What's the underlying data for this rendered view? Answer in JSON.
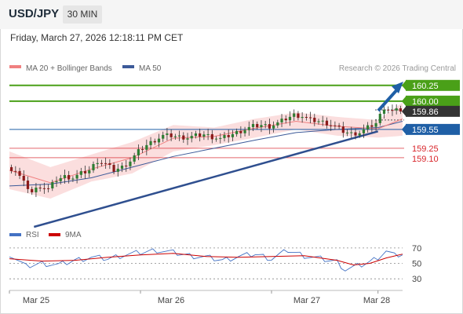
{
  "header": {
    "pair": "USD/JPY",
    "timeframe": "30 MIN"
  },
  "datetime": "Friday, March 27, 2026 12:18:11 PM CET",
  "copyright": "Research © 2026 Trading Central",
  "colors": {
    "resistance": "#4aa018",
    "support": "#d9262c",
    "pivot": "#1f5fa6",
    "trendline": "#2f4f8f",
    "ma20": "#f08080",
    "ma50": "#3c5a99",
    "bollinger_fill": "#fbdede",
    "current_price": "#333333",
    "rsi": "#4472c4",
    "rsi_ma": "#cc0000"
  },
  "chart_data": [
    {
      "type": "line",
      "legend": [
        {
          "name": "MA 20 + Bollinger Bands",
          "color": "#f08080"
        },
        {
          "name": "MA 50",
          "color": "#3c5a99"
        }
      ],
      "x_ticks": [
        "Mar 25",
        "Mar 26",
        "Mar 27",
        "Mar 28"
      ],
      "ylim": [
        158.05,
        160.36
      ],
      "levels": [
        {
          "value": 160.25,
          "label": "160.25",
          "kind": "resistance"
        },
        {
          "value": 160.0,
          "label": "160.00",
          "kind": "resistance"
        },
        {
          "value": 159.86,
          "label": "159.86",
          "kind": "current"
        },
        {
          "value": 159.55,
          "label": "159.55",
          "kind": "pivot"
        },
        {
          "value": 159.25,
          "label": "159.25",
          "kind": "support"
        },
        {
          "value": 159.1,
          "label": "159.10",
          "kind": "support"
        }
      ],
      "price_path": [
        [
          0,
          158.95
        ],
        [
          2,
          158.9
        ],
        [
          4,
          158.7
        ],
        [
          6,
          158.55
        ],
        [
          8,
          158.65
        ],
        [
          10,
          158.6
        ],
        [
          12,
          158.75
        ],
        [
          14,
          158.8
        ],
        [
          16,
          158.78
        ],
        [
          18,
          158.85
        ],
        [
          20,
          158.9
        ],
        [
          22,
          159.05
        ],
        [
          24,
          159.0
        ],
        [
          26,
          158.9
        ],
        [
          28,
          158.95
        ],
        [
          30,
          159.05
        ],
        [
          32,
          159.2
        ],
        [
          34,
          159.3
        ],
        [
          36,
          159.38
        ],
        [
          38,
          159.45
        ],
        [
          40,
          159.45
        ],
        [
          42,
          159.43
        ],
        [
          44,
          159.42
        ],
        [
          46,
          159.45
        ],
        [
          48,
          159.47
        ],
        [
          50,
          159.43
        ],
        [
          52,
          159.4
        ],
        [
          54,
          159.45
        ],
        [
          56,
          159.5
        ],
        [
          58,
          159.55
        ],
        [
          60,
          159.6
        ],
        [
          62,
          159.62
        ],
        [
          64,
          159.6
        ],
        [
          66,
          159.65
        ],
        [
          68,
          159.72
        ],
        [
          70,
          159.78
        ],
        [
          72,
          159.76
        ],
        [
          74,
          159.7
        ],
        [
          76,
          159.68
        ],
        [
          78,
          159.65
        ],
        [
          80,
          159.6
        ],
        [
          82,
          159.52
        ],
        [
          84,
          159.48
        ],
        [
          86,
          159.5
        ],
        [
          88,
          159.58
        ],
        [
          90,
          159.65
        ],
        [
          92,
          159.9
        ],
        [
          94,
          159.84
        ],
        [
          96,
          159.86
        ]
      ],
      "bb_upper": [
        [
          0,
          159.2
        ],
        [
          10,
          158.95
        ],
        [
          20,
          159.15
        ],
        [
          30,
          159.35
        ],
        [
          40,
          159.62
        ],
        [
          50,
          159.58
        ],
        [
          60,
          159.72
        ],
        [
          70,
          159.82
        ],
        [
          80,
          159.75
        ],
        [
          90,
          159.7
        ],
        [
          96,
          159.98
        ]
      ],
      "bb_lower": [
        [
          0,
          158.6
        ],
        [
          10,
          158.45
        ],
        [
          20,
          158.72
        ],
        [
          30,
          158.85
        ],
        [
          40,
          159.2
        ],
        [
          50,
          159.3
        ],
        [
          60,
          159.42
        ],
        [
          70,
          159.55
        ],
        [
          80,
          159.45
        ],
        [
          90,
          159.42
        ],
        [
          96,
          159.45
        ]
      ],
      "ma20": [
        [
          0,
          158.9
        ],
        [
          10,
          158.7
        ],
        [
          20,
          158.92
        ],
        [
          30,
          159.1
        ],
        [
          40,
          159.41
        ],
        [
          50,
          159.44
        ],
        [
          60,
          159.57
        ],
        [
          70,
          159.68
        ],
        [
          80,
          159.6
        ],
        [
          90,
          159.56
        ],
        [
          96,
          159.72
        ]
      ],
      "ma50": [
        [
          0,
          158.65
        ],
        [
          10,
          158.68
        ],
        [
          20,
          158.78
        ],
        [
          30,
          158.95
        ],
        [
          40,
          159.12
        ],
        [
          50,
          159.25
        ],
        [
          60,
          159.38
        ],
        [
          70,
          159.5
        ],
        [
          80,
          159.55
        ],
        [
          90,
          159.58
        ],
        [
          96,
          159.68
        ]
      ],
      "trendline": [
        [
          6,
          158.0
        ],
        [
          90,
          159.52
        ]
      ]
    },
    {
      "type": "line",
      "legend": [
        {
          "name": "RSI",
          "color": "#4472c4"
        },
        {
          "name": "9MA",
          "color": "#cc0000"
        }
      ],
      "y_ticks": [
        "70",
        "50",
        "30"
      ],
      "ylim": [
        17,
        79
      ],
      "rsi": [
        [
          0,
          62
        ],
        [
          4,
          46
        ],
        [
          8,
          50
        ],
        [
          12,
          48
        ],
        [
          16,
          54
        ],
        [
          20,
          58
        ],
        [
          24,
          56
        ],
        [
          28,
          61
        ],
        [
          32,
          64
        ],
        [
          36,
          67
        ],
        [
          40,
          64
        ],
        [
          44,
          60
        ],
        [
          48,
          58
        ],
        [
          52,
          54
        ],
        [
          56,
          59
        ],
        [
          60,
          62
        ],
        [
          64,
          56
        ],
        [
          68,
          67
        ],
        [
          72,
          60
        ],
        [
          76,
          56
        ],
        [
          80,
          52
        ],
        [
          82,
          42
        ],
        [
          84,
          45
        ],
        [
          86,
          48
        ],
        [
          88,
          52
        ],
        [
          90,
          58
        ],
        [
          92,
          66
        ],
        [
          94,
          60
        ],
        [
          96,
          62
        ]
      ],
      "rsi_ma": [
        [
          0,
          56
        ],
        [
          8,
          53
        ],
        [
          16,
          54
        ],
        [
          24,
          58
        ],
        [
          32,
          61
        ],
        [
          40,
          63
        ],
        [
          48,
          59
        ],
        [
          56,
          58
        ],
        [
          64,
          59
        ],
        [
          72,
          60
        ],
        [
          80,
          54
        ],
        [
          84,
          48
        ],
        [
          88,
          50
        ],
        [
          92,
          57
        ],
        [
          96,
          62
        ]
      ]
    }
  ]
}
